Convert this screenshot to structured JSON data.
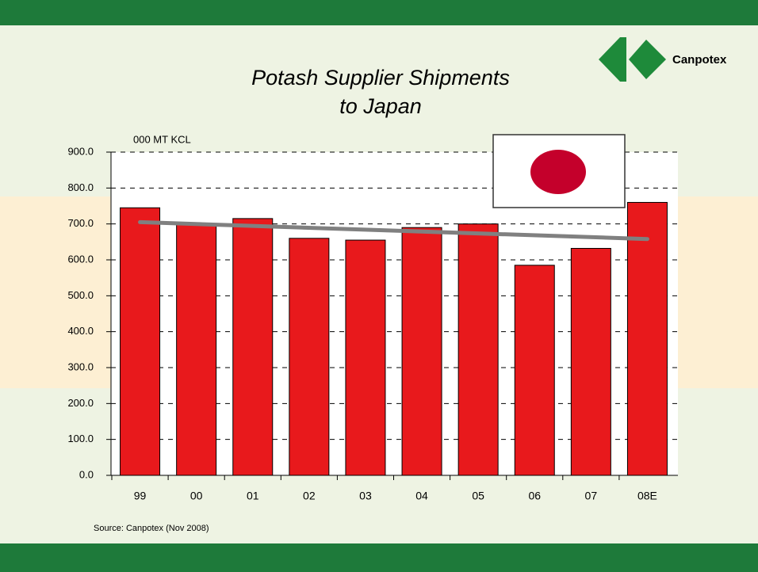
{
  "logo": "Canpotex",
  "chart_data": {
    "type": "bar",
    "title_line1": "Potash Supplier Shipments",
    "title_line2": "to Japan",
    "y_label": "000 MT KCL",
    "source": "Source: Canpotex (Nov 2008)",
    "categories": [
      "99",
      "00",
      "01",
      "02",
      "03",
      "04",
      "05",
      "06",
      "07",
      "08E"
    ],
    "values": [
      745,
      700,
      715,
      660,
      655,
      690,
      700,
      585,
      632,
      760
    ],
    "color": "#e8191c",
    "trend": [
      705,
      658
    ],
    "trend_color": "#808080",
    "ylim": [
      0,
      900
    ],
    "yticks": [
      {
        "value": 0,
        "label": "0.0"
      },
      {
        "value": 100,
        "label": "100.0"
      },
      {
        "value": 200,
        "label": "200.0"
      },
      {
        "value": 300,
        "label": "300.0"
      },
      {
        "value": 400,
        "label": "400.0"
      },
      {
        "value": 500,
        "label": "500.0"
      },
      {
        "value": 600,
        "label": "600.0"
      },
      {
        "value": 700,
        "label": "700.0"
      },
      {
        "value": 800,
        "label": "800.0"
      },
      {
        "value": 900,
        "label": "900.0"
      }
    ],
    "grid": true
  }
}
